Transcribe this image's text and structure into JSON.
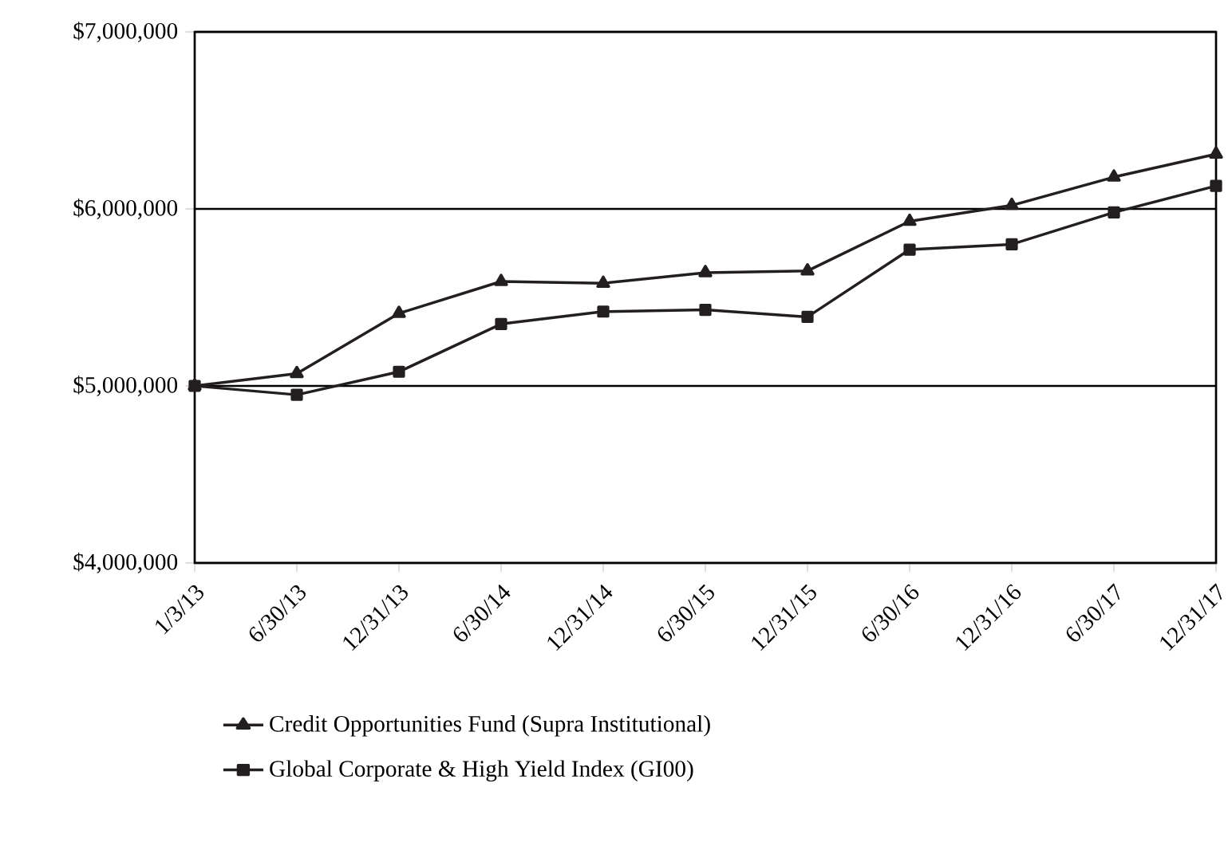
{
  "chart_data": {
    "type": "line",
    "categories": [
      "1/3/13",
      "6/30/13",
      "12/31/13",
      "6/30/14",
      "12/31/14",
      "6/30/15",
      "12/31/15",
      "6/30/16",
      "12/31/16",
      "6/30/17",
      "12/31/17"
    ],
    "series": [
      {
        "name": "Credit Opportunities Fund (Supra Institutional)",
        "color": "#231f20",
        "marker": "triangle",
        "values": [
          5000000,
          5070000,
          5410000,
          5590000,
          5580000,
          5640000,
          5650000,
          5930000,
          6020000,
          6180000,
          6310000
        ]
      },
      {
        "name": "Global Corporate & High Yield Index (GI00)",
        "color": "#231f20",
        "marker": "square",
        "values": [
          5000000,
          4950000,
          5080000,
          5350000,
          5420000,
          5430000,
          5390000,
          5770000,
          5800000,
          5980000,
          6130000
        ]
      }
    ],
    "ylim": [
      4000000,
      7000000
    ],
    "yticks": [
      {
        "value": 4000000,
        "label": "$4,000,000"
      },
      {
        "value": 5000000,
        "label": "$5,000,000"
      },
      {
        "value": 6000000,
        "label": "$6,000,000"
      },
      {
        "value": 7000000,
        "label": "$7,000,000"
      }
    ],
    "grid": "y",
    "legend": "bottom",
    "line_style": "solid"
  }
}
